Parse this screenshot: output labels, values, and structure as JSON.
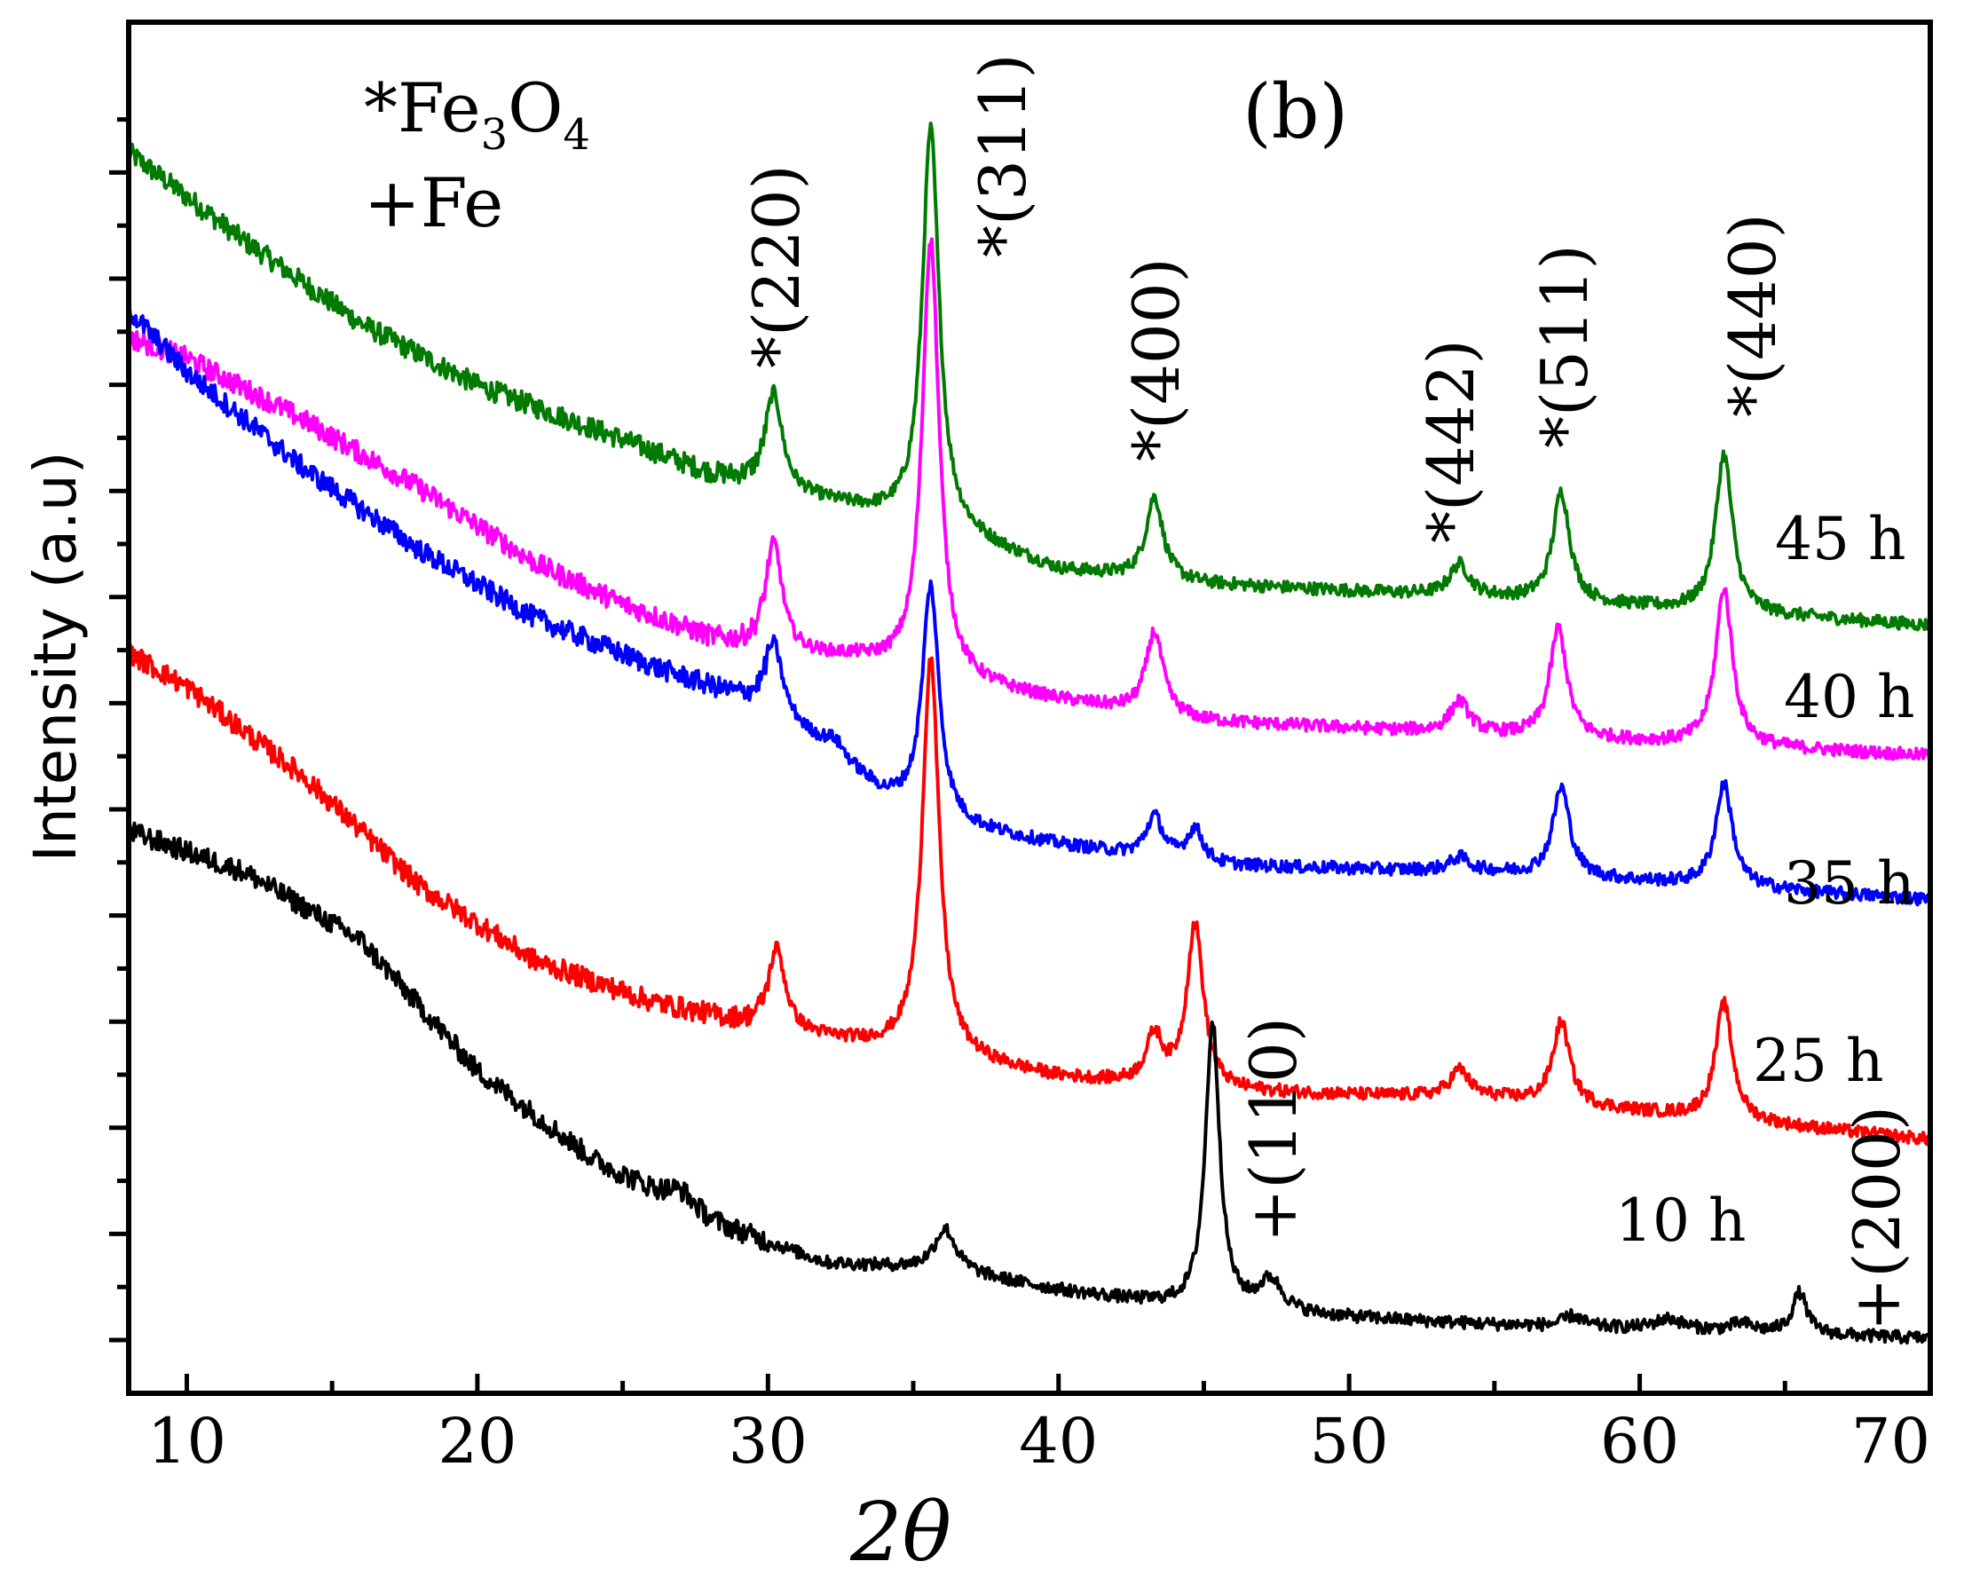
{
  "chart_data": {
    "type": "line",
    "title": "",
    "panel_label": "(b)",
    "xlabel": "2θ",
    "ylabel": "Intensity (a.u)",
    "xlim": [
      8,
      70
    ],
    "ylim": [
      0,
      100
    ],
    "x_ticks": [
      10,
      20,
      30,
      40,
      50,
      60,
      70
    ],
    "legend": [
      {
        "symbol": "*",
        "text": "Fe",
        "sub": "3",
        "text2": "O",
        "sub2": "4"
      },
      {
        "symbol": "+",
        "text": "Fe"
      }
    ],
    "series": [
      {
        "name": "45 h",
        "label": "45 h",
        "color": "#007a00",
        "baseline": [
          [
            8,
            90.5
          ],
          [
            12,
            84
          ],
          [
            16,
            78
          ],
          [
            20,
            73.5
          ],
          [
            25,
            69.5
          ],
          [
            28,
            67
          ],
          [
            30,
            66
          ],
          [
            33,
            64.5
          ],
          [
            36,
            63
          ],
          [
            40,
            60
          ],
          [
            45,
            59
          ],
          [
            55,
            58
          ],
          [
            70,
            56
          ]
        ],
        "peaks": [
          [
            30.2,
            7,
            0.35
          ],
          [
            35.6,
            29,
            0.35
          ],
          [
            43.3,
            6,
            0.35
          ],
          [
            53.8,
            2.3,
            0.4
          ],
          [
            57.3,
            8,
            0.35
          ],
          [
            62.9,
            11.5,
            0.35
          ]
        ]
      },
      {
        "name": "40 h",
        "label": "40 h",
        "color": "#ff00ff",
        "baseline": [
          [
            8,
            77
          ],
          [
            10,
            75.5
          ],
          [
            14,
            71
          ],
          [
            18,
            66
          ],
          [
            22,
            60.5
          ],
          [
            25,
            57.5
          ],
          [
            28,
            55
          ],
          [
            30,
            54
          ],
          [
            33,
            53.5
          ],
          [
            36,
            52
          ],
          [
            40,
            50.5
          ],
          [
            45,
            49
          ],
          [
            55,
            48
          ],
          [
            70,
            46.5
          ]
        ],
        "peaks": [
          [
            30.2,
            8,
            0.35
          ],
          [
            35.6,
            32,
            0.35
          ],
          [
            43.3,
            6,
            0.35
          ],
          [
            53.8,
            2.3,
            0.4
          ],
          [
            57.2,
            8,
            0.35
          ],
          [
            62.9,
            11.5,
            0.35
          ]
        ]
      },
      {
        "name": "35 h",
        "label": "35 h",
        "color": "#0000ff",
        "baseline": [
          [
            8,
            79
          ],
          [
            10,
            74.5
          ],
          [
            14,
            67.5
          ],
          [
            18,
            61.5
          ],
          [
            22,
            56.5
          ],
          [
            26,
            53
          ],
          [
            30,
            50
          ],
          [
            32,
            47
          ],
          [
            34,
            43.5
          ],
          [
            36,
            41.5
          ],
          [
            40,
            40
          ],
          [
            45,
            38.5
          ],
          [
            55,
            38
          ],
          [
            70,
            36
          ]
        ],
        "peaks": [
          [
            30.2,
            5,
            0.35
          ],
          [
            32.3,
            1,
            0.4
          ],
          [
            35.6,
            17,
            0.35
          ],
          [
            43.3,
            3,
            0.35
          ],
          [
            44.7,
            2.5,
            0.35
          ],
          [
            53.8,
            1,
            0.4
          ],
          [
            57.3,
            6.5,
            0.35
          ],
          [
            62.9,
            7.5,
            0.35
          ]
        ]
      },
      {
        "name": "25 h",
        "label": "25 h",
        "color": "#ff0000",
        "baseline": [
          [
            8,
            54
          ],
          [
            10,
            51.5
          ],
          [
            14,
            45
          ],
          [
            18,
            37
          ],
          [
            22,
            31.5
          ],
          [
            26,
            28.5
          ],
          [
            30,
            26.5
          ],
          [
            33,
            25.5
          ],
          [
            36,
            24.5
          ],
          [
            40,
            23
          ],
          [
            45,
            22
          ],
          [
            55,
            21.5
          ],
          [
            70,
            18.5
          ]
        ],
        "peaks": [
          [
            30.3,
            6,
            0.35
          ],
          [
            35.6,
            29,
            0.35
          ],
          [
            43.3,
            3.5,
            0.35
          ],
          [
            44.7,
            12,
            0.35
          ],
          [
            53.8,
            2,
            0.4
          ],
          [
            57.3,
            6,
            0.35
          ],
          [
            62.9,
            8.5,
            0.35
          ]
        ]
      },
      {
        "name": "10 h",
        "label": "10 h",
        "color": "#000000",
        "baseline": [
          [
            8,
            41
          ],
          [
            12,
            38
          ],
          [
            16,
            33
          ],
          [
            20,
            23.5
          ],
          [
            24,
            17
          ],
          [
            28,
            12.5
          ],
          [
            32,
            9.5
          ],
          [
            36,
            9
          ],
          [
            40,
            7.5
          ],
          [
            45,
            6
          ],
          [
            55,
            5
          ],
          [
            70,
            4
          ]
        ],
        "peaks": [
          [
            27,
            1.2,
            0.6
          ],
          [
            36.1,
            3,
            0.45
          ],
          [
            45.3,
            21,
            0.3
          ],
          [
            47.3,
            2.3,
            0.5
          ],
          [
            57.7,
            0.8,
            0.4
          ],
          [
            61,
            0.8,
            0.6
          ],
          [
            63.5,
            0.6,
            0.5
          ],
          [
            65.5,
            3,
            0.3
          ]
        ]
      }
    ],
    "peak_labels": [
      {
        "text": "*(220)",
        "x": 30.2
      },
      {
        "text": "*(311)",
        "x": 37.0
      },
      {
        "text": "*(400)",
        "x": 43.3
      },
      {
        "text": "*(442)",
        "x": 53.8
      },
      {
        "text": "*(511)",
        "x": 57.3
      },
      {
        "text": "*(440)",
        "x": 63.2
      },
      {
        "text": "+(110)",
        "x": 47.3
      },
      {
        "text": "+(200)",
        "x": 67.3
      }
    ]
  }
}
